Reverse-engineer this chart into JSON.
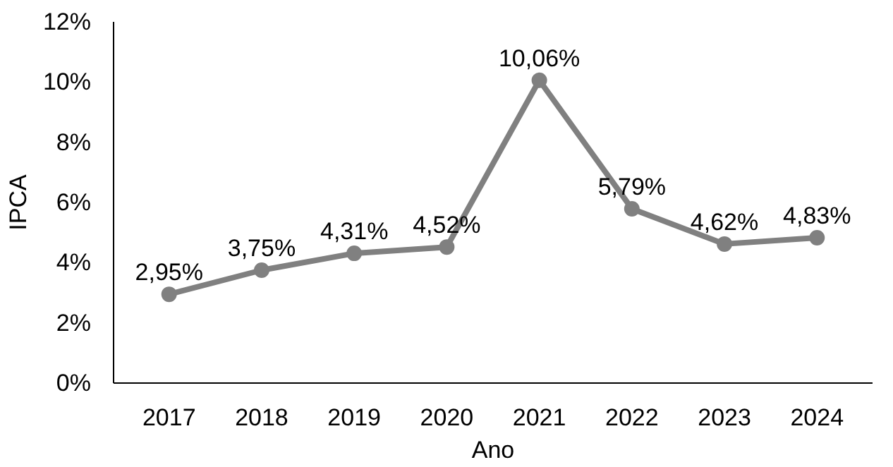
{
  "chart_data": {
    "type": "line",
    "xlabel": "Ano",
    "ylabel": "IPCA",
    "categories": [
      "2017",
      "2018",
      "2019",
      "2020",
      "2021",
      "2022",
      "2023",
      "2024"
    ],
    "series": [
      {
        "color": "#808080",
        "values": [
          2.95,
          3.75,
          4.31,
          4.52,
          10.06,
          5.79,
          4.62,
          4.83
        ],
        "value_labels": [
          "2,95%",
          "3,75%",
          "4,31%",
          "4,52%",
          "10,06%",
          "5,79%",
          "4,62%",
          "4,83%"
        ]
      }
    ],
    "ylim": [
      0,
      12
    ],
    "yticks": [
      {
        "value": 0,
        "label": "0%"
      },
      {
        "value": 2,
        "label": "2%"
      },
      {
        "value": 4,
        "label": "4%"
      },
      {
        "value": 6,
        "label": "6%"
      },
      {
        "value": 8,
        "label": "8%"
      },
      {
        "value": 10,
        "label": "10%"
      },
      {
        "value": 12,
        "label": "12%"
      }
    ],
    "grid": false,
    "marker": "circle",
    "line_style": "solid"
  }
}
